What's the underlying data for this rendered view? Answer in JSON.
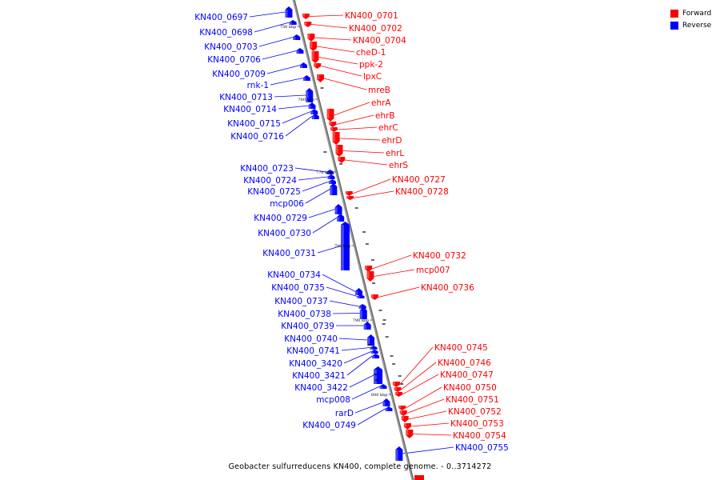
{
  "legend": {
    "forward_label": "Forward",
    "reverse_label": "Reverse",
    "forward_color": "#ff0000",
    "reverse_color": "#0000ff"
  },
  "caption": "Geobacter sulfurreducens KN400, complete genome. - 0..3714272",
  "scale": {
    "ticks": [
      "750 kbp",
      "760 kbp",
      "770 kbp",
      "780 kbp",
      "790 kbp",
      "800 kbp"
    ]
  },
  "genes": [
    {
      "name": "KN400_0697",
      "strand": "reverse"
    },
    {
      "name": "KN400_0698",
      "strand": "reverse"
    },
    {
      "name": "KN400_0703",
      "strand": "reverse"
    },
    {
      "name": "KN400_0706",
      "strand": "reverse"
    },
    {
      "name": "KN400_0709",
      "strand": "reverse"
    },
    {
      "name": "rnk-1",
      "strand": "reverse"
    },
    {
      "name": "KN400_0713",
      "strand": "reverse"
    },
    {
      "name": "KN400_0714",
      "strand": "reverse"
    },
    {
      "name": "KN400_0715",
      "strand": "reverse"
    },
    {
      "name": "KN400_0716",
      "strand": "reverse"
    },
    {
      "name": "KN400_0723",
      "strand": "reverse"
    },
    {
      "name": "KN400_0724",
      "strand": "reverse"
    },
    {
      "name": "KN400_0725",
      "strand": "reverse"
    },
    {
      "name": "mcp006",
      "strand": "reverse"
    },
    {
      "name": "KN400_0729",
      "strand": "reverse"
    },
    {
      "name": "KN400_0730",
      "strand": "reverse"
    },
    {
      "name": "KN400_0731",
      "strand": "reverse"
    },
    {
      "name": "KN400_0734",
      "strand": "reverse"
    },
    {
      "name": "KN400_0735",
      "strand": "reverse"
    },
    {
      "name": "KN400_0737",
      "strand": "reverse"
    },
    {
      "name": "KN400_0738",
      "strand": "reverse"
    },
    {
      "name": "KN400_0739",
      "strand": "reverse"
    },
    {
      "name": "KN400_0740",
      "strand": "reverse"
    },
    {
      "name": "KN400_0741",
      "strand": "reverse"
    },
    {
      "name": "KN400_3420",
      "strand": "reverse"
    },
    {
      "name": "KN400_3421",
      "strand": "reverse"
    },
    {
      "name": "KN400_3422",
      "strand": "reverse"
    },
    {
      "name": "mcp008",
      "strand": "reverse"
    },
    {
      "name": "rarD",
      "strand": "reverse"
    },
    {
      "name": "KN400_0749",
      "strand": "reverse"
    },
    {
      "name": "KN400_0701",
      "strand": "forward"
    },
    {
      "name": "KN400_0702",
      "strand": "forward"
    },
    {
      "name": "KN400_0704",
      "strand": "forward"
    },
    {
      "name": "cheD-1",
      "strand": "forward"
    },
    {
      "name": "ppk-2",
      "strand": "forward"
    },
    {
      "name": "lpxC",
      "strand": "forward"
    },
    {
      "name": "mreB",
      "strand": "forward"
    },
    {
      "name": "ehrA",
      "strand": "forward"
    },
    {
      "name": "ehrB",
      "strand": "forward"
    },
    {
      "name": "ehrC",
      "strand": "forward"
    },
    {
      "name": "ehrD",
      "strand": "forward"
    },
    {
      "name": "ehrL",
      "strand": "forward"
    },
    {
      "name": "ehrS",
      "strand": "forward"
    },
    {
      "name": "KN400_0727",
      "strand": "forward"
    },
    {
      "name": "KN400_0728",
      "strand": "forward"
    },
    {
      "name": "KN400_0732",
      "strand": "forward"
    },
    {
      "name": "mcp007",
      "strand": "forward"
    },
    {
      "name": "KN400_0736",
      "strand": "forward"
    },
    {
      "name": "KN400_0745",
      "strand": "forward"
    },
    {
      "name": "KN400_0746",
      "strand": "forward"
    },
    {
      "name": "KN400_0747",
      "strand": "forward"
    },
    {
      "name": "KN400_0750",
      "strand": "forward"
    },
    {
      "name": "KN400_0751",
      "strand": "forward"
    },
    {
      "name": "KN400_0752",
      "strand": "forward"
    },
    {
      "name": "KN400_0753",
      "strand": "forward"
    },
    {
      "name": "KN400_0754",
      "strand": "forward"
    },
    {
      "name": "KN400_0755",
      "strand": "reverse"
    }
  ]
}
